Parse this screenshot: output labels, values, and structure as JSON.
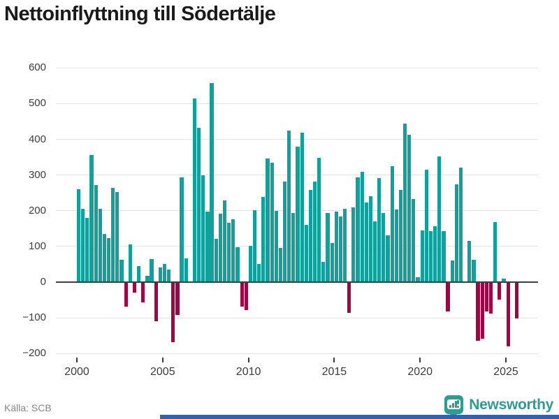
{
  "page": {
    "title": "Nettoinflyttning till Södertälje"
  },
  "footer": {
    "source": "Källa: SCB",
    "brand": "Newsworthy"
  },
  "colors": {
    "positive_bar": "#11a09b",
    "negative_bar": "#9c0845",
    "gridline": "#e3e3e3",
    "zero_line": "#3d3d3d",
    "axis_text": "#3c3c3c",
    "title_text": "#1a1a1a",
    "source_text": "#878787",
    "brand_teal": "#2f9c94",
    "bottom_strip": "#3563a8"
  },
  "chart_data": {
    "type": "bar",
    "title": "Nettoinflyttning till Södertälje",
    "frequency": "quarterly",
    "x_range": [
      "2000-Q1",
      "2025-Q3"
    ],
    "x_tick_labels": [
      "2000",
      "2005",
      "2010",
      "2015",
      "2020",
      "2025"
    ],
    "y_ticks": [
      600,
      500,
      400,
      300,
      200,
      100,
      0,
      -100,
      -200
    ],
    "y_tick_labels": [
      "600",
      "500",
      "400",
      "300",
      "200",
      "100",
      "0",
      "−100",
      "−200"
    ],
    "ylim": [
      -200,
      600
    ],
    "grid": true,
    "legend": false,
    "series": [
      {
        "name": "Nettoinflyttning",
        "values": [
          258,
          204,
          178,
          354,
          270,
          204,
          133,
          122,
          263,
          250,
          60,
          -67,
          103,
          -28,
          44,
          -54,
          16,
          63,
          -107,
          39,
          48,
          34,
          -167,
          -89,
          292,
          65,
          0,
          512,
          430,
          297,
          195,
          555,
          120,
          190,
          227,
          165,
          175,
          96,
          -67,
          -77,
          100,
          200,
          48,
          237,
          344,
          333,
          197,
          93,
          279,
          423,
          191,
          377,
          417,
          158,
          256,
          279,
          346,
          54,
          192,
          107,
          196,
          181,
          204,
          -84,
          207,
          292,
          307,
          222,
          239,
          169,
          290,
          192,
          130,
          322,
          201,
          257,
          443,
          410,
          230,
          11,
          142,
          312,
          140,
          154,
          351,
          140,
          -80,
          59,
          271,
          318,
          0,
          114,
          60,
          -162,
          -157,
          -80,
          -86,
          166,
          -46,
          8,
          -178,
          0,
          -100
        ]
      }
    ]
  }
}
